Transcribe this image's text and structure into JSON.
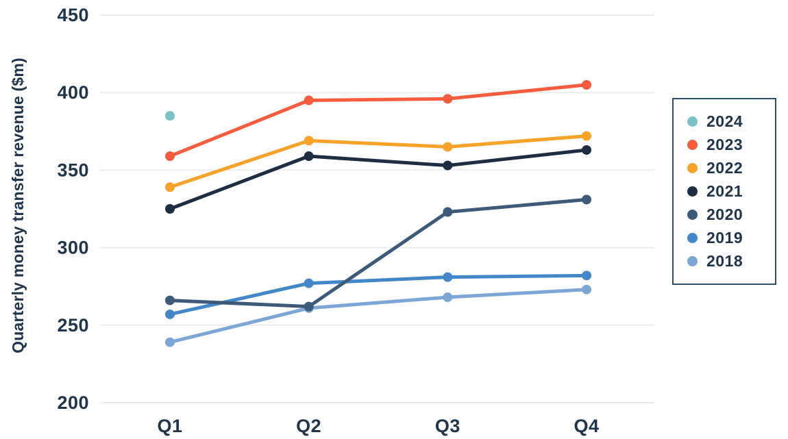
{
  "page": {
    "background_color": "#ffffff",
    "text_color": "#20344b"
  },
  "chart_data": {
    "type": "line",
    "title": "",
    "xlabel": "",
    "ylabel": "Quarterly money transfer revenue ($m)",
    "categories": [
      "Q1",
      "Q2",
      "Q3",
      "Q4"
    ],
    "ylim": [
      200,
      450
    ],
    "yticks": [
      450,
      400,
      350,
      300,
      250,
      200
    ],
    "grid": "horizontal",
    "grid_color": "#ececec",
    "legend_position": "right",
    "legend_border_color": "#2f4d6b",
    "series": [
      {
        "name": "2024",
        "color": "#79c3c6",
        "values": [
          385,
          null,
          null,
          null
        ]
      },
      {
        "name": "2023",
        "color": "#f85c3f",
        "values": [
          359,
          395,
          396,
          405
        ]
      },
      {
        "name": "2022",
        "color": "#f9a229",
        "values": [
          339,
          369,
          365,
          372
        ]
      },
      {
        "name": "2021",
        "color": "#1e2d41",
        "values": [
          325,
          359,
          353,
          363
        ]
      },
      {
        "name": "2020",
        "color": "#3d5a78",
        "values": [
          266,
          262,
          323,
          331
        ]
      },
      {
        "name": "2019",
        "color": "#4288c9",
        "values": [
          257,
          277,
          281,
          282
        ]
      },
      {
        "name": "2018",
        "color": "#7ca7d4",
        "values": [
          239,
          261,
          268,
          273
        ]
      }
    ]
  }
}
